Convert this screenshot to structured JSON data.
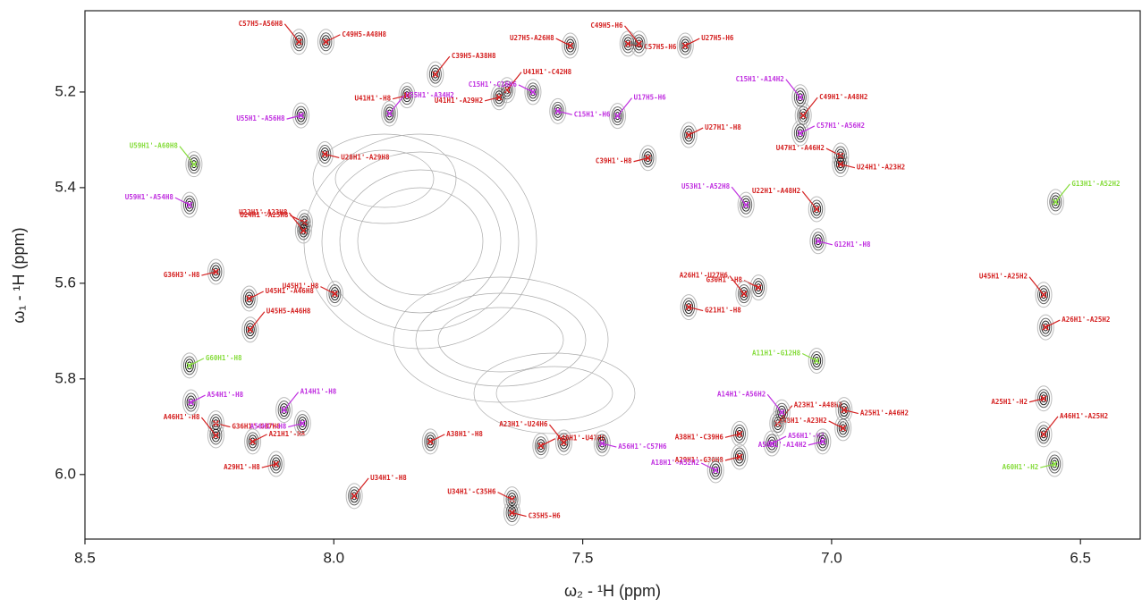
{
  "chart_data": {
    "type": "scatter",
    "xlabel": "ω₂ - ¹H  (ppm)",
    "ylabel": "ω₁ - ¹H  (ppm)",
    "xlim": [
      8.5,
      6.38
    ],
    "ylim": [
      6.135,
      5.03
    ],
    "xticks": [
      8.5,
      {
        "value": 8.0,
        "label": "8.0"
      },
      7.5,
      {
        "value": 7.0,
        "label": "7.0"
      },
      6.5
    ],
    "yticks": [
      5.2,
      5.4,
      5.6,
      5.8,
      {
        "value": 6.0,
        "label": "6.0"
      }
    ],
    "series": [
      {
        "color": "#d42020",
        "x": [
          8.07,
          8.016,
          7.853,
          7.652,
          7.525,
          7.409,
          7.387,
          7.294,
          7.668,
          7.796,
          8.059,
          8.018,
          8.061,
          8.17,
          8.237,
          8.168,
          7.998,
          8.237,
          8.237,
          8.163,
          8.116,
          7.959,
          7.642,
          7.642,
          7.538,
          7.584,
          7.185,
          7.108,
          6.977,
          6.975,
          6.574,
          6.57,
          6.574,
          6.574,
          6.982,
          6.982,
          7.03,
          7.287,
          7.369,
          7.057,
          7.147,
          7.287,
          7.176,
          7.806,
          7.185
        ],
        "y": [
          5.095,
          5.095,
          5.207,
          5.196,
          5.103,
          5.099,
          5.099,
          5.103,
          5.211,
          5.163,
          5.473,
          5.33,
          5.49,
          5.632,
          5.576,
          5.697,
          5.622,
          5.893,
          5.918,
          5.931,
          5.978,
          6.045,
          6.052,
          6.08,
          5.933,
          5.94,
          5.963,
          5.893,
          5.903,
          5.865,
          5.624,
          5.692,
          5.841,
          5.916,
          5.333,
          5.351,
          5.445,
          5.29,
          5.338,
          5.249,
          5.609,
          5.65,
          5.622,
          5.931,
          5.915
        ],
        "labels": [
          "C57H5-A56H8",
          "C49H5-A48H8",
          "U41H1'-H8",
          "U41H1'-C42H8",
          "U27H5-A26H8",
          "C57H5-H6",
          "C49H5-H6",
          "U27H5-H6",
          "U41H1'-A29H2",
          "C39H5-A38H8",
          "U24H1'-A25H8",
          "U28H1'-A29H8",
          "U22H1'-A23H8",
          "U45H1'-A46H8",
          "G36H3'-H8",
          "U45H5-A46H8",
          "U45H1'-H8",
          "G36H1'-G37H8",
          "A46H1'-H8",
          "A21H1'-H8",
          "A29H1'-H8",
          "U34H1'-H8",
          "U34H1'-C35H6",
          "C35H5-H6",
          "A23H1'-U24H6",
          "A46H1'-U47H6",
          "A29H1'-G30H8",
          "A23H1'-A48H2",
          "A48H1'-A23H2",
          "A25H1'-A46H2",
          "U45H1'-A25H2",
          "A26H1'-A25H2",
          "A25H1'-H2",
          "A46H1'-A25H2",
          "U47H1'-A46H2",
          "U24H1'-A23H2",
          "U22H1'-A48H2",
          "U27H1'-H8",
          "C39H1'-H8",
          "C49H1'-A48H2",
          "G30H1'-H8",
          "G21H1'-H8",
          "A26H1'-U27H6",
          "A38H1'-H8",
          "A38H1'-C39H6"
        ]
      },
      {
        "color": "#c030e0",
        "x": [
          7.063,
          7.063,
          8.066,
          7.888,
          8.29,
          7.027,
          7.172,
          8.287,
          8.063,
          8.1,
          7.233,
          7.461,
          7.1,
          7.12,
          7.018,
          7.43,
          7.6,
          7.55
        ],
        "y": [
          5.211,
          5.286,
          5.249,
          5.245,
          5.436,
          5.512,
          5.436,
          5.849,
          5.893,
          5.865,
          5.991,
          5.935,
          5.87,
          5.935,
          5.931,
          5.25,
          5.2,
          5.24
        ],
        "labels": [
          "C15H1'-A14H2",
          "C57H1'-A56H2",
          "U55H1'-A56H8",
          "U55H1'-A34H2",
          "U59H1'-A54H8",
          "G12H1'-H8",
          "U53H1'-A52H8",
          "A54H1'-H8",
          "A56H1'-H8",
          "A14H1'-H8",
          "A18H1'-A52H2",
          "A56H1'-C57H6",
          "A14H1'-A56H2",
          "A56H1'-H2",
          "A56H1'-A14H2",
          "U17H5-H6",
          "C15H1'-C16H6",
          "C15H1'-H6"
        ]
      },
      {
        "color": "#86dc3c",
        "x": [
          8.281,
          8.29,
          6.552,
          6.55,
          7.03
        ],
        "y": [
          5.351,
          5.772,
          5.978,
          5.43,
          5.762
        ],
        "labels": [
          "U59H1'-A60H8",
          "G60H1'-H8",
          "A60H1'-H2",
          "G13H1'-A52H2",
          "A11H1'-G12H8"
        ]
      }
    ]
  }
}
